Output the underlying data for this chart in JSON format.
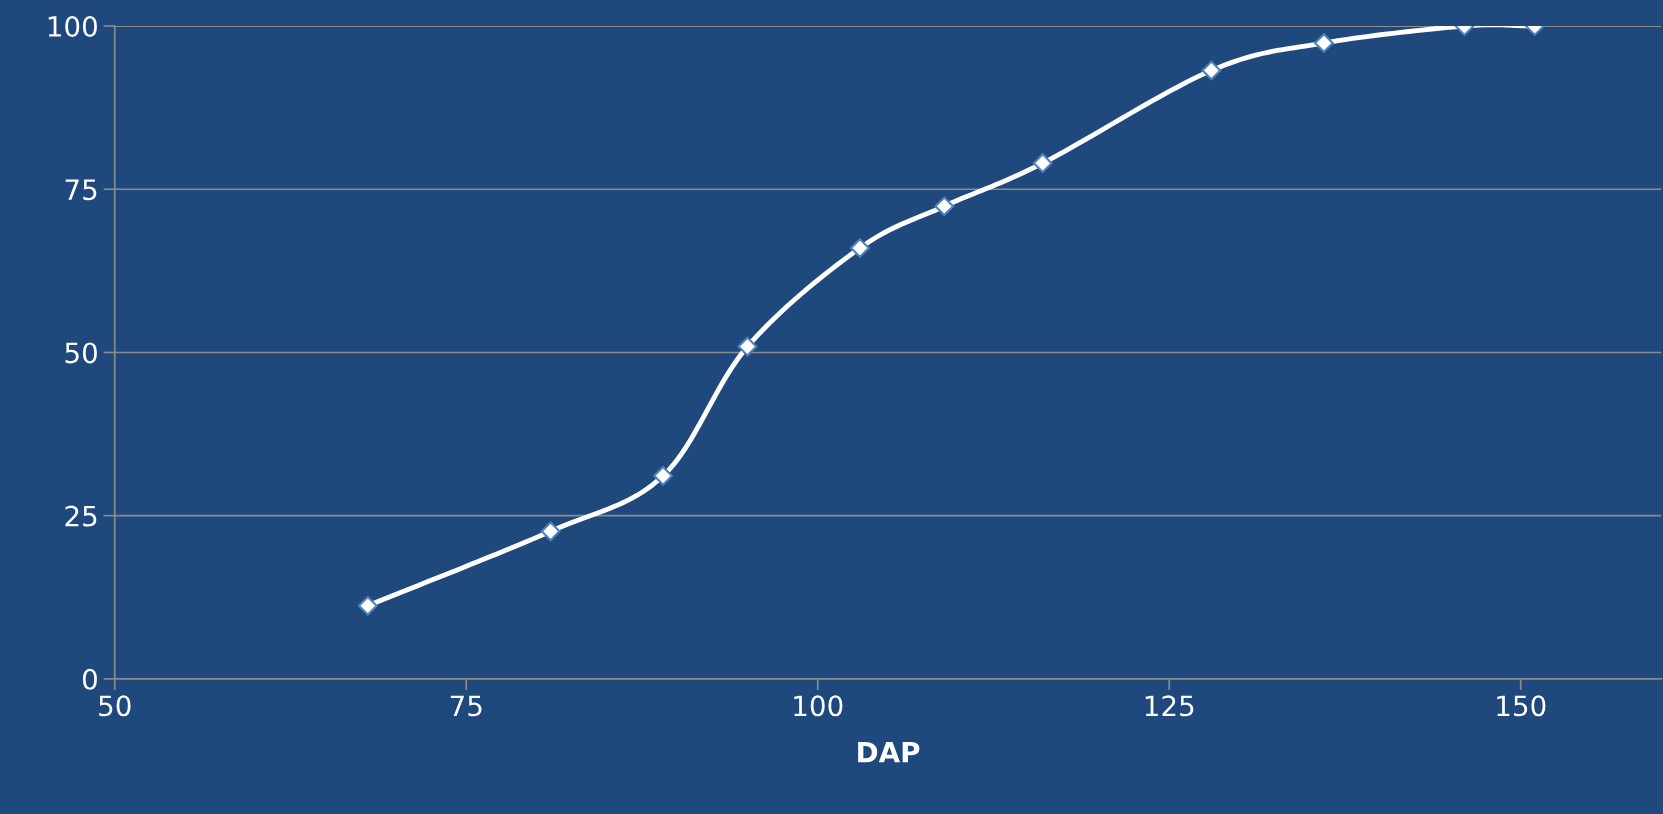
{
  "chart_data": {
    "type": "line",
    "xlabel": "DAP",
    "x": [
      68,
      81,
      89,
      95,
      103,
      109,
      116,
      128,
      136,
      146,
      151
    ],
    "series": [
      {
        "color": "#ffffff",
        "values": [
          11.2,
          22.6,
          31.1,
          50.9,
          66,
          72.4,
          79,
          93.2,
          97.4,
          100,
          100
        ]
      }
    ],
    "xlim": [
      50,
      160
    ],
    "xticks": [
      50,
      75,
      100,
      125,
      150
    ],
    "ylim": [
      0,
      100
    ],
    "yticks": [
      0,
      25,
      50,
      75,
      100
    ],
    "grid": "y",
    "marker": "diamond",
    "line_style": "solid"
  }
}
